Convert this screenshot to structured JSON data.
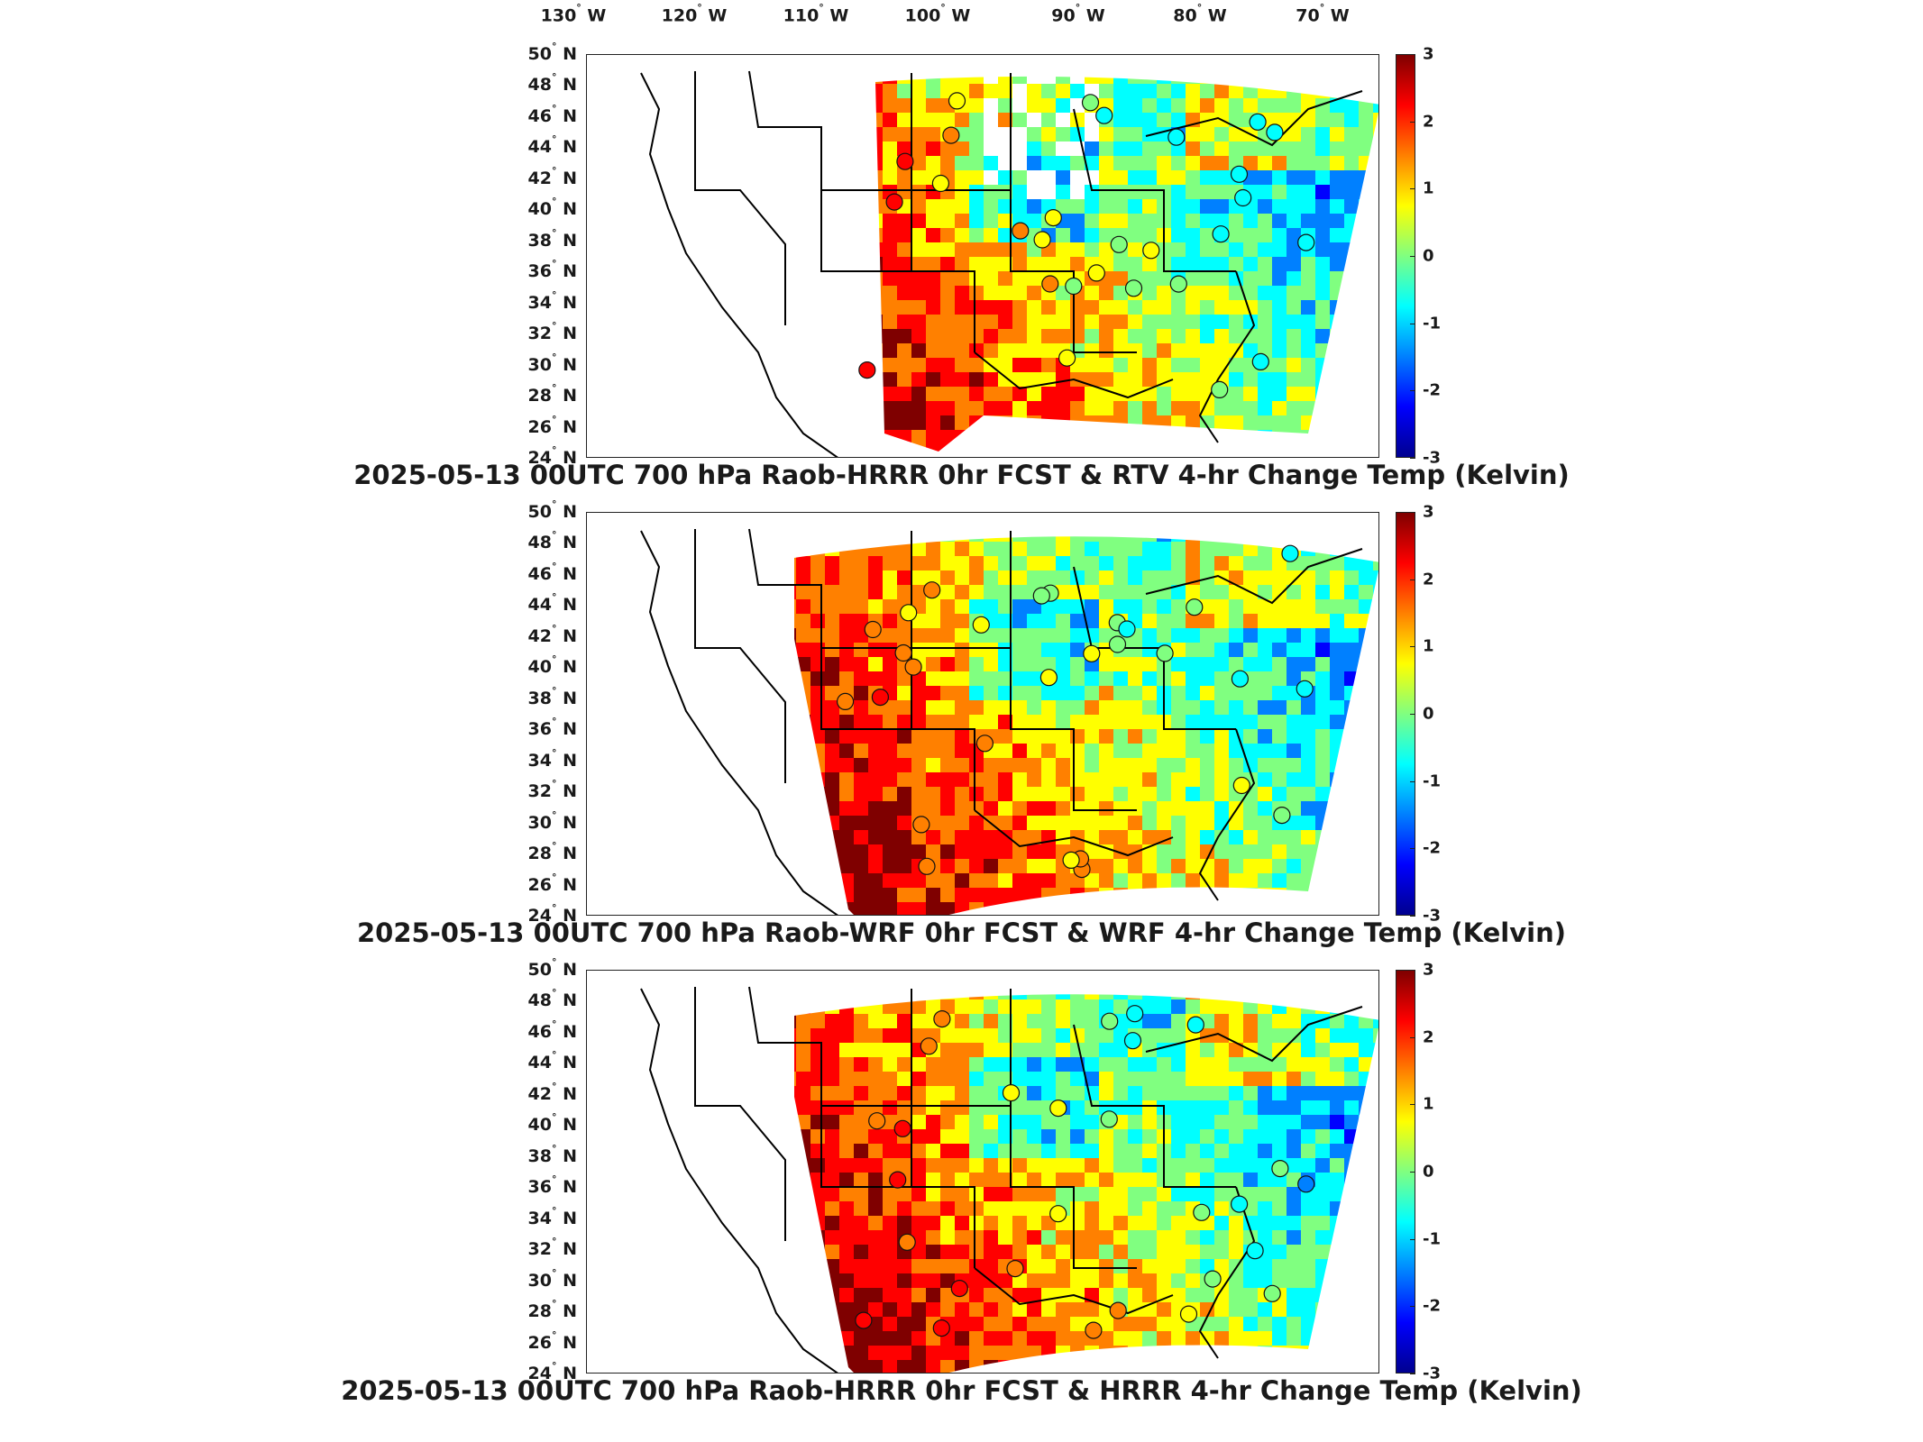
{
  "lon_labels": [
    {
      "deg": "130",
      "hemi": "W"
    },
    {
      "deg": "120",
      "hemi": "W"
    },
    {
      "deg": "110",
      "hemi": "W"
    },
    {
      "deg": "100",
      "hemi": "W"
    },
    {
      "deg": "90",
      "hemi": "W"
    },
    {
      "deg": "80",
      "hemi": "W"
    },
    {
      "deg": "70",
      "hemi": "W"
    }
  ],
  "lat_labels": [
    {
      "deg": "50",
      "hemi": "N"
    },
    {
      "deg": "48",
      "hemi": "N"
    },
    {
      "deg": "46",
      "hemi": "N"
    },
    {
      "deg": "44",
      "hemi": "N"
    },
    {
      "deg": "42",
      "hemi": "N"
    },
    {
      "deg": "40",
      "hemi": "N"
    },
    {
      "deg": "38",
      "hemi": "N"
    },
    {
      "deg": "36",
      "hemi": "N"
    },
    {
      "deg": "34",
      "hemi": "N"
    },
    {
      "deg": "32",
      "hemi": "N"
    },
    {
      "deg": "30",
      "hemi": "N"
    },
    {
      "deg": "28",
      "hemi": "N"
    },
    {
      "deg": "26",
      "hemi": "N"
    },
    {
      "deg": "24",
      "hemi": "N"
    }
  ],
  "colorbar": {
    "ticks": [
      "3",
      "2",
      "1",
      "0",
      "-1",
      "-2",
      "-3"
    ],
    "range": [
      -3,
      3
    ],
    "colormap": [
      "#7f0000",
      "#ff0000",
      "#ff8000",
      "#ffff00",
      "#80ff80",
      "#00ffff",
      "#0080ff",
      "#0000ff",
      "#00008f"
    ]
  },
  "panels": [
    {
      "title": "2025-05-13 00UTC 700 hPa Raob-HRRR 0hr FCST & RTV 4-hr Change Temp (Kelvin)",
      "coverage": "partial"
    },
    {
      "title": "2025-05-13 00UTC 700 hPa Raob-WRF 0hr FCST & WRF 4-hr Change Temp (Kelvin)",
      "coverage": "full"
    },
    {
      "title": "2025-05-13 00UTC 700 hPa Raob-HRRR 0hr FCST & HRRR 4-hr Change Temp (Kelvin)",
      "coverage": "full"
    }
  ],
  "colors": {
    "frame": "#222222",
    "state_lines": "#000000",
    "no_data": "#ffffff"
  }
}
